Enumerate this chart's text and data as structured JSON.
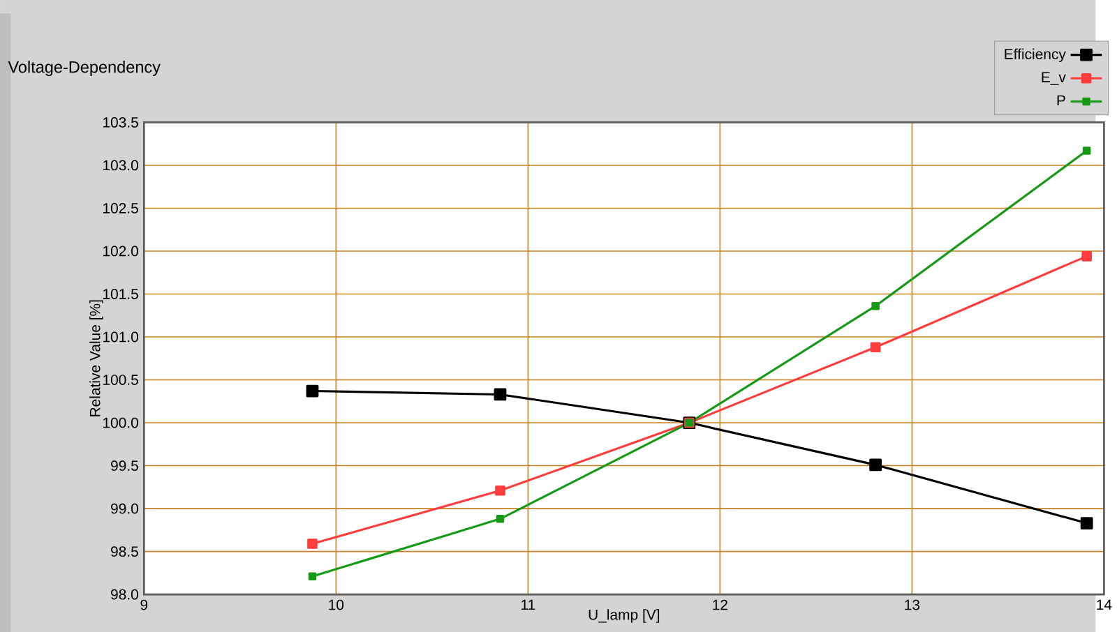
{
  "chart_data": {
    "type": "line",
    "title": "Voltage-Dependency",
    "xlabel": "U_lamp [V]",
    "ylabel": "Relative Value [%]",
    "series": [
      {
        "name": "Efficiency",
        "color": "#000000",
        "x": [
          9.877,
          10.855,
          11.84,
          12.81,
          13.91
        ],
        "values": [
          100.37,
          100.33,
          100.0,
          99.51,
          98.83
        ]
      },
      {
        "name": "E_v",
        "color": "#ff3c3c",
        "x": [
          9.877,
          10.855,
          11.84,
          12.81,
          13.91
        ],
        "values": [
          98.59,
          99.21,
          100.0,
          100.88,
          101.94
        ]
      },
      {
        "name": "P",
        "color": "#169a16",
        "x": [
          9.877,
          10.855,
          11.84,
          12.81,
          13.91
        ],
        "values": [
          98.21,
          98.88,
          100.0,
          101.36,
          103.17
        ]
      }
    ],
    "xlim": [
      9,
      14
    ],
    "xticks": [
      9,
      10,
      11,
      12,
      13,
      14
    ],
    "ylim": [
      98.0,
      103.5
    ],
    "yticks": [
      {
        "value": 98.0,
        "label": "98.0"
      },
      {
        "value": 98.5,
        "label": "98.5"
      },
      {
        "value": 99.0,
        "label": "99.0"
      },
      {
        "value": 99.5,
        "label": "99.5"
      },
      {
        "value": 100.0,
        "label": "100.0"
      },
      {
        "value": 100.5,
        "label": "100.5"
      },
      {
        "value": 101.0,
        "label": "101.0"
      },
      {
        "value": 101.5,
        "label": "101.5"
      },
      {
        "value": 102.0,
        "label": "102.0"
      },
      {
        "value": 102.5,
        "label": "102.5"
      },
      {
        "value": 103.0,
        "label": "103.0"
      },
      {
        "value": 103.5,
        "label": "103.5"
      }
    ],
    "grid": true,
    "legend": "top right",
    "marker": "square",
    "line_style": "solid"
  }
}
